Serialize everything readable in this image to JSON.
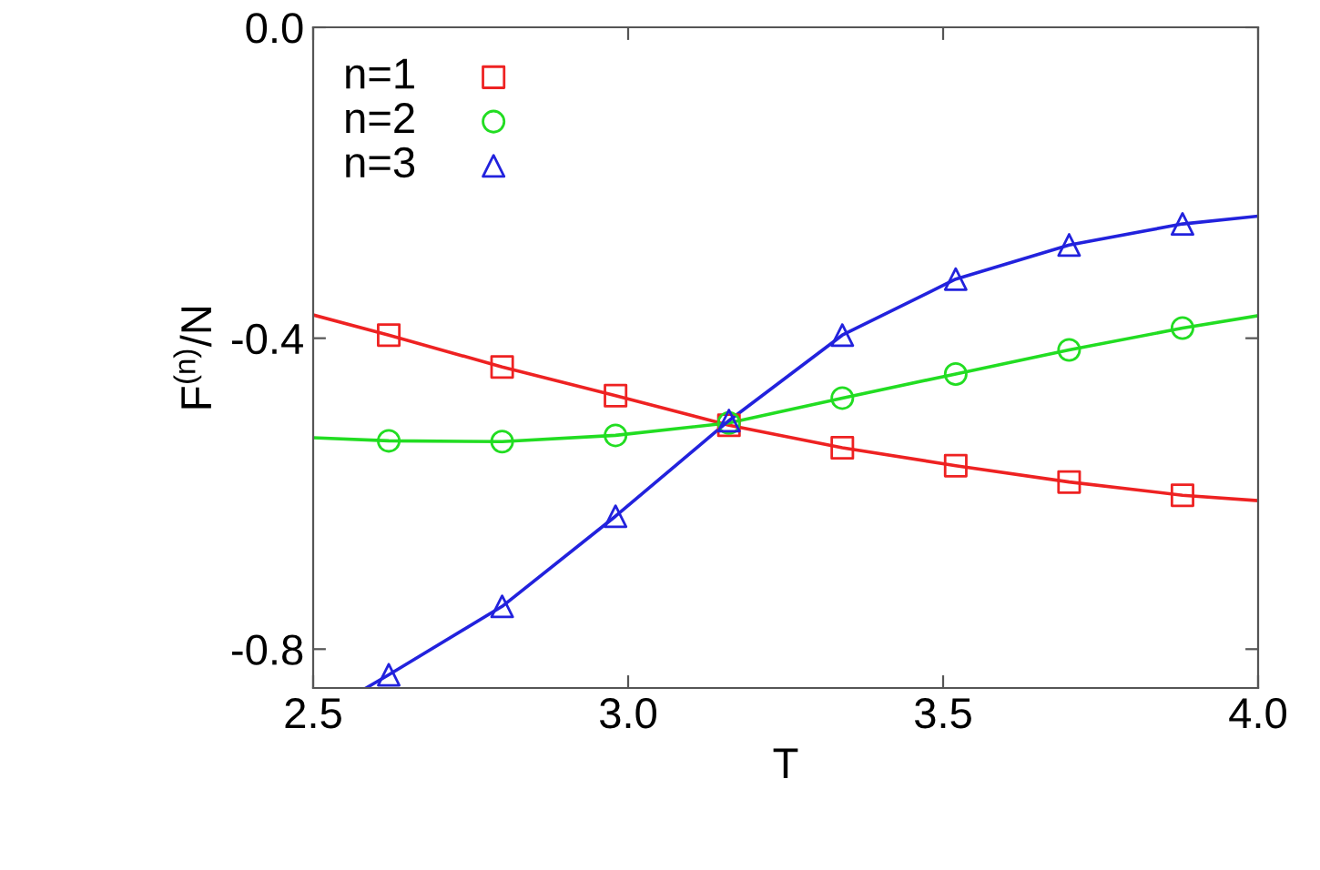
{
  "chart_data": {
    "type": "scatter",
    "xlabel": "T",
    "ylabel": "F$^{(n)}$/N",
    "xlim": [
      2.5,
      4.0
    ],
    "ylim": [
      -0.85,
      0.0
    ],
    "xticks": [
      {
        "value": 2.5,
        "label": "2.5"
      },
      {
        "value": 3.0,
        "label": "3.0"
      },
      {
        "value": 3.5,
        "label": "3.5"
      },
      {
        "value": 4.0,
        "label": "4.0"
      }
    ],
    "yticks": [
      {
        "value": 0.0,
        "label": "0.0"
      },
      {
        "value": -0.4,
        "label": "-0.4"
      },
      {
        "value": -0.8,
        "label": "-0.8"
      }
    ],
    "grid": false,
    "legend": "top left",
    "x": [
      2.62,
      2.8,
      2.98,
      3.16,
      3.34,
      3.52,
      3.7,
      3.88
    ],
    "series": [
      {
        "name": "n=1",
        "color": "#ee2222",
        "marker": "square",
        "values": [
          -0.396,
          -0.437,
          -0.474,
          -0.512,
          -0.541,
          -0.564,
          -0.585,
          -0.602
        ]
      },
      {
        "name": "n=2",
        "color": "#22dd22",
        "marker": "circle",
        "values": [
          -0.532,
          -0.533,
          -0.525,
          -0.509,
          -0.477,
          -0.446,
          -0.415,
          -0.387
        ]
      },
      {
        "name": "n=3",
        "color": "#2222dd",
        "marker": "triangle",
        "values": [
          -0.833,
          -0.745,
          -0.629,
          -0.506,
          -0.396,
          -0.324,
          -0.28,
          -0.253
        ]
      },
      {
        "type": "line",
        "color": "#ee2222",
        "x": [
          2.5,
          2.62,
          2.8,
          2.98,
          3.16,
          3.34,
          3.52,
          3.7,
          3.88,
          4.0
        ],
        "values": [
          -0.37,
          -0.396,
          -0.437,
          -0.474,
          -0.512,
          -0.541,
          -0.564,
          -0.585,
          -0.602,
          -0.609
        ]
      },
      {
        "type": "line",
        "color": "#22dd22",
        "x": [
          2.5,
          2.62,
          2.8,
          2.98,
          3.16,
          3.34,
          3.52,
          3.7,
          3.88,
          4.0
        ],
        "values": [
          -0.528,
          -0.532,
          -0.533,
          -0.525,
          -0.509,
          -0.477,
          -0.446,
          -0.415,
          -0.387,
          -0.371
        ]
      },
      {
        "type": "line",
        "color": "#2222dd",
        "x": [
          2.584,
          2.62,
          2.8,
          2.98,
          3.16,
          3.34,
          3.52,
          3.7,
          3.88,
          4.0
        ],
        "values": [
          -0.85,
          -0.833,
          -0.745,
          -0.629,
          -0.506,
          -0.396,
          -0.324,
          -0.28,
          -0.253,
          -0.243
        ]
      }
    ]
  }
}
